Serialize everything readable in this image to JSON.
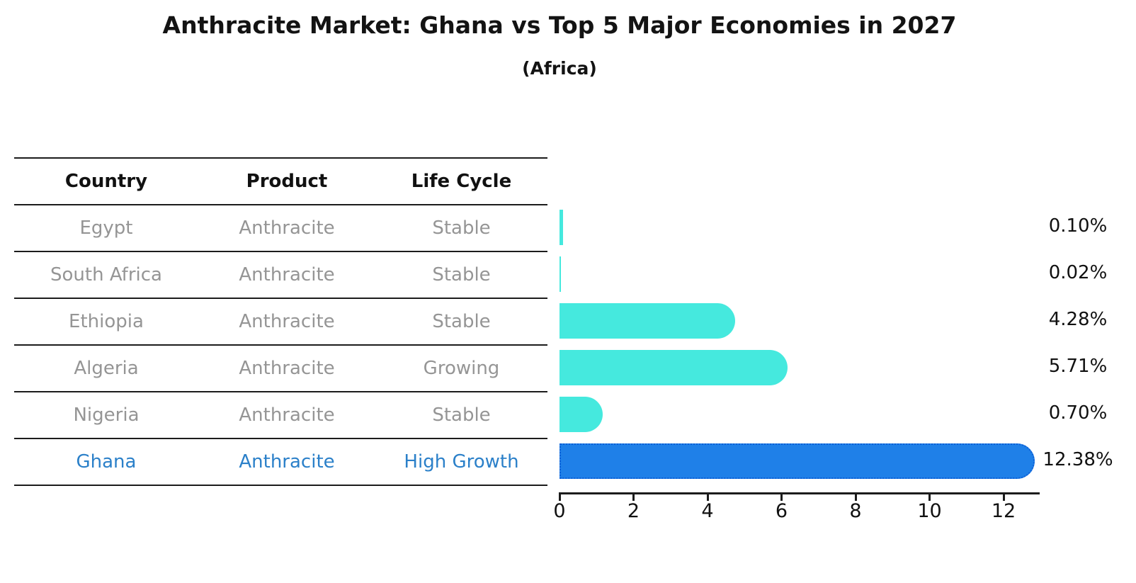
{
  "title": "Anthracite Market: Ghana vs Top 5 Major Economies in 2027",
  "subtitle": "(Africa)",
  "table": {
    "headers": [
      "Country",
      "Product",
      "Life Cycle"
    ],
    "rows": [
      {
        "country": "Egypt",
        "product": "Anthracite",
        "life_cycle": "Stable",
        "highlight": false
      },
      {
        "country": "South Africa",
        "product": "Anthracite",
        "life_cycle": "Stable",
        "highlight": false
      },
      {
        "country": "Ethiopia",
        "product": "Anthracite",
        "life_cycle": "Stable",
        "highlight": false
      },
      {
        "country": "Algeria",
        "product": "Anthracite",
        "life_cycle": "Growing",
        "highlight": false
      },
      {
        "country": "Nigeria",
        "product": "Anthracite",
        "life_cycle": "Stable",
        "highlight": false
      },
      {
        "country": "Ghana",
        "product": "Anthracite",
        "life_cycle": "High Growth",
        "highlight": true
      }
    ]
  },
  "chart_data": {
    "type": "bar",
    "orientation": "horizontal",
    "title": "Anthracite Market: Ghana vs Top 5 Major Economies in 2027",
    "subtitle": "(Africa)",
    "categories": [
      "Egypt",
      "South Africa",
      "Ethiopia",
      "Algeria",
      "Nigeria",
      "Ghana"
    ],
    "values": [
      0.1,
      0.02,
      4.28,
      5.71,
      0.7,
      12.38
    ],
    "value_labels": [
      "0.10%",
      "0.02%",
      "4.28%",
      "5.71%",
      "0.70%",
      "12.38%"
    ],
    "x_ticks": [
      0,
      2,
      4,
      6,
      8,
      10,
      12
    ],
    "xlim": [
      0,
      12.96
    ],
    "grid": false,
    "legend": "none",
    "highlight_index": 5,
    "colors": {
      "default_bar": "#45e9de",
      "highlight_bar": "#1f80e8",
      "highlight_edge": "#0d5fd6",
      "highlight_text": "#2b80c9",
      "row_text": "#959595",
      "header_text": "#111111",
      "axis": "#1c1c1c"
    }
  }
}
